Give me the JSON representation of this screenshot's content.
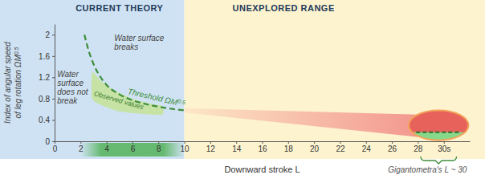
{
  "chart_data": {
    "type": "line",
    "regions": [
      {
        "label": "CURRENT THEORY",
        "x": [
          0,
          10
        ],
        "color": "#cfe2f3"
      },
      {
        "label": "UNEXPLORED RANGE",
        "x": [
          10,
          32
        ],
        "color": "#fdf3cf"
      }
    ],
    "xlabel": "Downward stroke L",
    "ylabel": [
      {
        "text": "Index of angular speed"
      },
      {
        "text": "of leg rotation ΩM",
        "sup": "0.5"
      }
    ],
    "xlim": [
      0,
      32
    ],
    "xticks": [
      0,
      2,
      4,
      6,
      8,
      10,
      12,
      14,
      16,
      18,
      20,
      22,
      24,
      26,
      28,
      {
        "value": 30,
        "label": "30s"
      }
    ],
    "ylim": [
      0,
      2.2
    ],
    "yticks": [
      0,
      0.4,
      0.8,
      1.2,
      1.6,
      2
    ],
    "series": [
      {
        "name": "Threshold ΩM",
        "name_sup": "0.5",
        "color": "#3e8e3a",
        "line_style": "dashed",
        "x": [
          2.3,
          2.6,
          3,
          3.5,
          4,
          5,
          6,
          7,
          8,
          9,
          10
        ],
        "values": [
          2.0,
          1.72,
          1.45,
          1.22,
          1.06,
          0.88,
          0.77,
          0.7,
          0.65,
          0.61,
          0.58
        ]
      }
    ],
    "observed": {
      "label": "Observed values",
      "color": "#c5e3a0",
      "x": [
        2.9,
        3.5,
        4.5,
        6,
        7.5,
        8.3,
        8.3,
        6.5,
        5,
        3.8,
        2.9
      ],
      "y": [
        1.3,
        1.15,
        0.97,
        0.8,
        0.7,
        0.66,
        0.5,
        0.52,
        0.56,
        0.66,
        0.8
      ]
    },
    "observed_L": {
      "x": [
        2,
        10
      ],
      "color": "#4caf50"
    },
    "projection": {
      "color": "#f07a7a",
      "x": [
        10,
        28,
        28,
        10
      ],
      "y": [
        0.62,
        0.5,
        0.08,
        0.54
      ]
    },
    "gigantometra": {
      "label": "Gigantometra's L ~ 30",
      "cx": 29.6,
      "cy": 0.3,
      "rx": 2.3,
      "ry": 0.28,
      "split": 0.17,
      "color": "#e8625c",
      "lower_color": "#86d98a"
    },
    "annotations": [
      {
        "lines": [
          "Water surface",
          "breaks"
        ]
      },
      {
        "lines": [
          "Water",
          "surface",
          "does not",
          "break"
        ]
      }
    ]
  }
}
